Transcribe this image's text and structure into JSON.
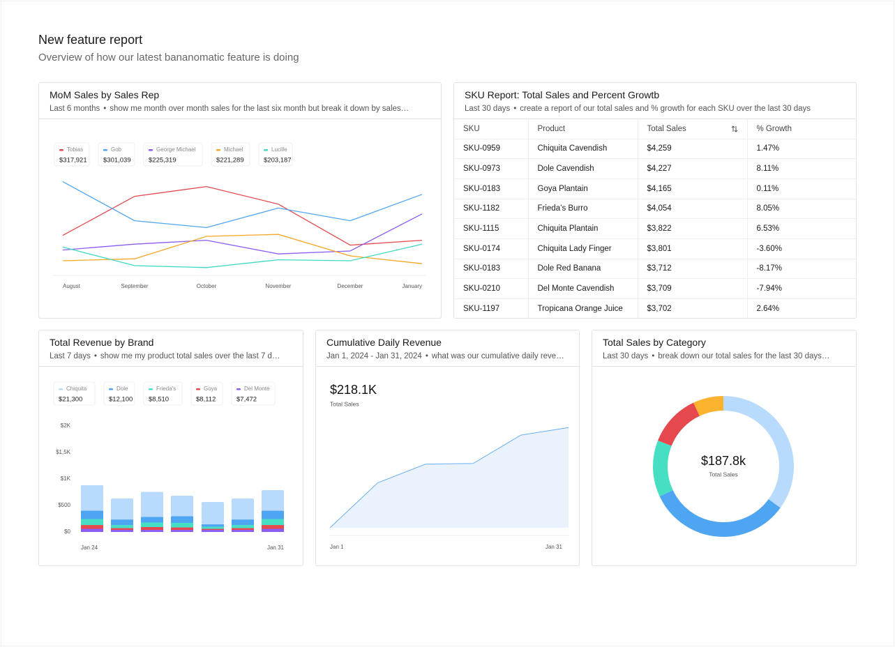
{
  "header": {
    "title": "New feature report",
    "subtitle": "Overview of how our latest bananomatic feature is doing"
  },
  "chart_data": [
    {
      "type": "line",
      "title": "MoM Sales by Sales Rep",
      "period": "Last 6 months",
      "prompt": "show me month over month sales for the last six month but break it down by sales…",
      "categories": [
        "August",
        "September",
        "October",
        "November",
        "December",
        "January"
      ],
      "ylim": [
        0,
        100
      ],
      "series": [
        {
          "name": "Tobias",
          "total": "$317,921",
          "color": "#e5484d",
          "values": [
            41,
            81,
            91,
            73,
            31,
            36
          ]
        },
        {
          "name": "Gob",
          "total": "$301,039",
          "color": "#4ea5f2",
          "values": [
            96,
            56,
            49,
            69,
            56,
            83
          ]
        },
        {
          "name": "George Michael",
          "total": "$225,319",
          "color": "#8b5cf6",
          "values": [
            26,
            32,
            36,
            22,
            25,
            63
          ]
        },
        {
          "name": "Michael",
          "total": "$221,289",
          "color": "#f5a623",
          "values": [
            15,
            17,
            40,
            42,
            20,
            12
          ]
        },
        {
          "name": "Lucille",
          "total": "$203,187",
          "color": "#3fd9c1",
          "values": [
            29,
            10,
            8,
            16,
            15,
            32
          ]
        }
      ]
    },
    {
      "type": "bar",
      "stacked": true,
      "title": "Total Revenue by Brand",
      "period": "Last 7 days",
      "prompt": "show me my product total sales over the last 7 d…",
      "categories": [
        "Jan 24",
        null,
        null,
        null,
        null,
        null,
        "Jan 31"
      ],
      "ylim": [
        0,
        2000
      ],
      "yticks": [
        {
          "value": 0,
          "label": "$0"
        },
        {
          "value": 500,
          "label": "$500"
        },
        {
          "value": 1000,
          "label": "$1K"
        },
        {
          "value": 1500,
          "label": "$1,5K"
        },
        {
          "value": 2000,
          "label": "$2K"
        }
      ],
      "series": [
        {
          "name": "Chiquita",
          "total": "$21,300",
          "color": "#b8dafc",
          "values": [
            480,
            395,
            474,
            388,
            421,
            395,
            388
          ]
        },
        {
          "name": "Dole",
          "total": "$12,100",
          "color": "#4ea5f2",
          "values": [
            158,
            105,
            105,
            125,
            46,
            105,
            158
          ]
        },
        {
          "name": "Frieda's",
          "total": "$8,510",
          "color": "#46dfc4",
          "values": [
            112,
            59,
            86,
            86,
            39,
            59,
            112
          ]
        },
        {
          "name": "Goya",
          "total": "$8,112",
          "color": "#e5484d",
          "values": [
            72,
            33,
            53,
            46,
            20,
            33,
            72
          ]
        },
        {
          "name": "Del Monte",
          "total": "$7,472",
          "color": "#8b5cf6",
          "values": [
            59,
            39,
            39,
            39,
            39,
            39,
            59
          ]
        }
      ]
    },
    {
      "type": "area",
      "title": "Cumulative Daily Revenue",
      "period": "Jan 1, 2024 - Jan 31, 2024",
      "prompt": "what was our cumulative daily reve…",
      "headline": "$218.1K",
      "headline_label": "Total Sales",
      "categories": [
        "Jan 1",
        null,
        null,
        null,
        null,
        "Jan 31"
      ],
      "ylim": [
        0,
        220
      ],
      "color": "#6aaef0",
      "values": [
        0,
        97.8,
        138.4,
        139.9,
        201.6,
        218.1
      ]
    },
    {
      "type": "donut",
      "title": "Total Sales by Category",
      "period": "Last 30 days",
      "prompt": "break down our total sales for the last 30 days…",
      "center_value": "$187.8k",
      "center_label": "Total Sales",
      "values": [
        35,
        33,
        13,
        12,
        7
      ],
      "colors": [
        "#b8dafc",
        "#4ea5f2",
        "#46dfc4",
        "#e5484d",
        "#fbb22e"
      ]
    }
  ],
  "table": {
    "title": "SKU Report: Total Sales and Percent Growtb",
    "period": "Last 30 days",
    "prompt": "create a report of our total sales and % growth for each SKU over the last 30 days",
    "columns": [
      "SKU",
      "Product",
      "Total Sales",
      "% Growth"
    ],
    "rows": [
      [
        "SKU-0959",
        "Chiquita Cavendish",
        "$4,259",
        "1.47%"
      ],
      [
        "SKU-0973",
        "Dole Cavendish",
        "$4,227",
        "8.11%"
      ],
      [
        "SKU-0183",
        "Goya Plantain",
        "$4,165",
        "0.11%"
      ],
      [
        "SKU-1182",
        "Frieda’s Burro",
        "$4,054",
        "8.05%"
      ],
      [
        "SKU-1115",
        "Chiquita Plantain",
        "$3,822",
        "6.53%"
      ],
      [
        "SKU-0174",
        "Chiquita Lady Finger",
        "$3,801",
        "-3.60%"
      ],
      [
        "SKU-0183",
        "Dole Red Banana",
        "$3,712",
        "-8.17%"
      ],
      [
        "SKU-0210",
        "Del Monte Cavendish",
        "$3,709",
        "-7.94%"
      ],
      [
        "SKU-1197",
        "Tropicana Orange Juice",
        "$3,702",
        "2.64%"
      ]
    ]
  }
}
